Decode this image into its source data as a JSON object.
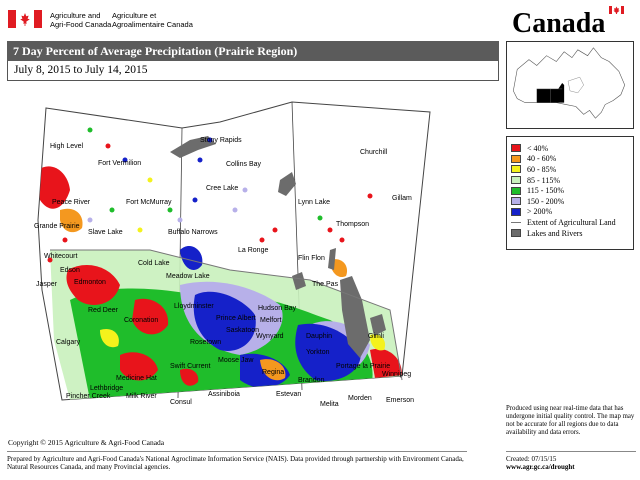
{
  "header": {
    "dept_en_line1": "Agriculture and",
    "dept_en_line2": "Agri-Food Canada",
    "dept_fr_line1": "Agriculture et",
    "dept_fr_line2": "Agroalimentaire Canada",
    "wordmark": "Canada"
  },
  "title": "7 Day Percent of Average Precipitation (Prairie Region)",
  "date_range": "July 8, 2015 to July 14, 2015",
  "legend": {
    "items": [
      {
        "label": "< 40%",
        "color": "#e8141b"
      },
      {
        "label": "40 - 60%",
        "color": "#f4981f"
      },
      {
        "label": "60 - 85%",
        "color": "#f4f21c"
      },
      {
        "label": "85 - 115%",
        "color": "#c9f1bd"
      },
      {
        "label": "115 - 150%",
        "color": "#1fbd2b"
      },
      {
        "label": "150 - 200%",
        "color": "#b7b0e9"
      },
      {
        "label": "> 200%",
        "color": "#1521c9"
      }
    ],
    "extent_label": "Extent of Agricultural Land",
    "lakes_label": "Lakes and Rivers",
    "lakes_color": "#6c6c6c"
  },
  "places": {
    "high_level": "High Level",
    "fort_vermilion": "Fort Vermilion",
    "peace_river": "Peace River",
    "fort_mcmurray": "Fort McMurray",
    "grande_prairie": "Grande Prairie",
    "slave_lake": "Slave Lake",
    "whitecourt": "Whitecourt",
    "edson": "Edson",
    "jasper": "Jasper",
    "cold_lake": "Cold Lake",
    "edmonton": "Edmonton",
    "red_deer": "Red Deer",
    "coronation": "Coronation",
    "calgary": "Calgary",
    "medicine_hat": "Medicine Hat",
    "pincher_creek": "Pincher Creek",
    "lethbridge": "Lethbridge",
    "milk_river": "Milk River",
    "stony_rapids": "Stony Rapids",
    "collins_bay": "Collins Bay",
    "cree_lake": "Cree Lake",
    "buffalo_narrows": "Buffalo Narrows",
    "la_ronge": "La Ronge",
    "meadow_lake": "Meadow Lake",
    "lloydminster": "Lloydminster",
    "prince_albert": "Prince Albert",
    "hudson_bay": "Hudson Bay",
    "saskatoon": "Saskatoon",
    "melfort": "Melfort",
    "rosetown": "Rosetown",
    "wynyard": "Wynyard",
    "swift_current": "Swift Current",
    "moose_jaw": "Moose Jaw",
    "regina": "Regina",
    "yorkton": "Yorkton",
    "assiniboia": "Assiniboia",
    "estevan": "Estevan",
    "consul": "Consul",
    "churchill": "Churchill",
    "lynn_lake": "Lynn Lake",
    "gillam": "Gillam",
    "thompson": "Thompson",
    "flin_flon": "Flin Flon",
    "the_pas": "The Pas",
    "dauphin": "Dauphin",
    "brandon": "Brandon",
    "winnipeg": "Winnipeg",
    "gimli": "Gimli",
    "morden": "Morden",
    "melita": "Melita",
    "emerson": "Emerson",
    "portage": "Portage la Prairie"
  },
  "note": "Produced using near real-time data that has undergone initial quality control. The map may not be accurate for all regions due to data availability and data errors.",
  "copyright": "Copyright © 2015 Agriculture & Agri-Food Canada",
  "footer_left": "Prepared by Agriculture and Agri-Food Canada's National Agroclimate Information Service (NAIS). Data provided through partnership with Environment Canada, Natural Resources Canada, and many Provincial agencies.",
  "created": "Created: 07/15/15",
  "website": "www.agr.gc.ca/drought"
}
